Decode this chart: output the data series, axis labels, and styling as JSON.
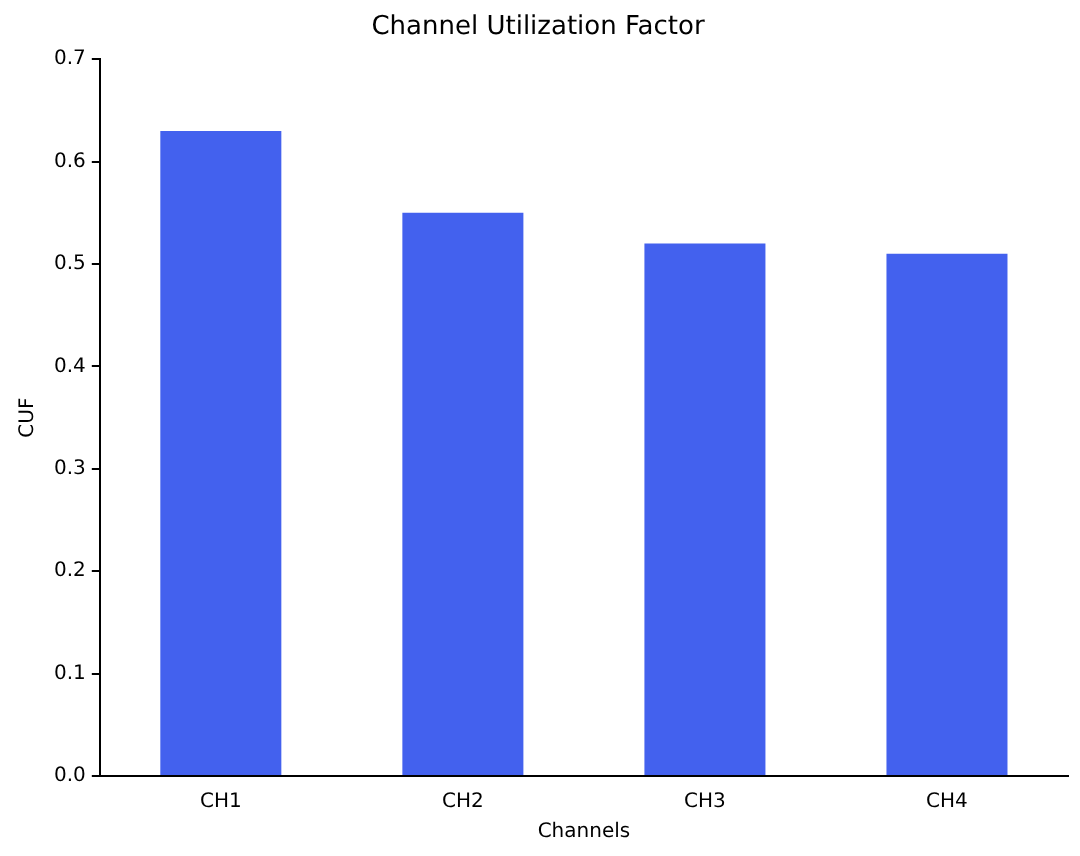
{
  "chart_data": {
    "type": "bar",
    "title": "Channel Utilization Factor",
    "xlabel": "Channels",
    "ylabel": "CUF",
    "categories": [
      "CH1",
      "CH2",
      "CH3",
      "CH4"
    ],
    "values": [
      0.63,
      0.55,
      0.52,
      0.51
    ],
    "color": "#4361ee",
    "ylim": [
      0,
      0.7
    ],
    "yticks": [
      {
        "value": 0,
        "label": "0.0"
      },
      0.1,
      0.2,
      0.3,
      0.4,
      0.5,
      0.6,
      0.7
    ],
    "grid": false,
    "legend": false
  }
}
